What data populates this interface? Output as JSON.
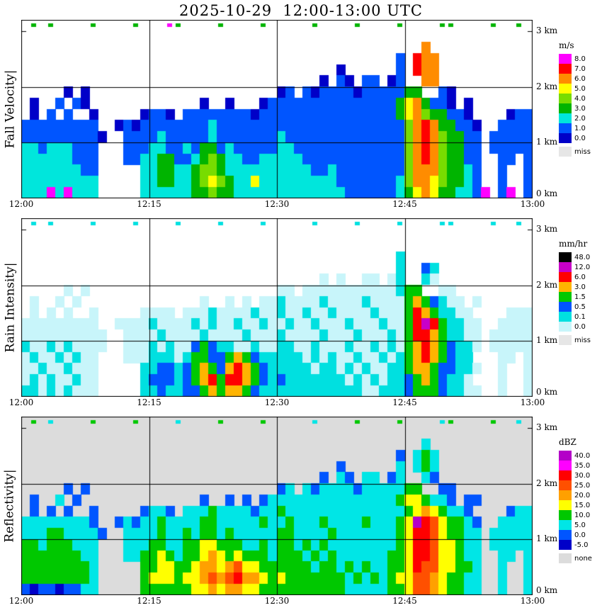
{
  "chart_data": {
    "type": "heatmap",
    "title": "2025-10-29  12:00-13:00 UTC",
    "date": "2025-10-29",
    "time_range_utc": "12:00-13:00",
    "x_axis": {
      "ticks": [
        "12:00",
        "12:15",
        "12:30",
        "12:45",
        "13:00"
      ],
      "tick_minutes": [
        0,
        15,
        30,
        45,
        60
      ],
      "range_minutes": [
        0,
        60
      ]
    },
    "y_axis": {
      "ticks": [
        {
          "label": "3 km",
          "km": 3
        },
        {
          "label": "2 km",
          "km": 2
        },
        {
          "label": "1 km",
          "km": 1
        },
        {
          "label": "0 km",
          "km": 0
        }
      ],
      "range_km": [
        0,
        3.2
      ],
      "gridlines_km": [
        1,
        2
      ]
    },
    "grid_encoding": "Each panel grid has 16 rows (top row = 3.0-3.2 km ... bottom row = 0.0-0.2 km) by 60 columns (1 minute each from 12:00 UTC). '.' means no echo / background; other characters are colour levels defined in that panel's palette.",
    "panels": [
      {
        "name": "fall-velocity",
        "ylabel": "Fall Velocity|",
        "unit": "m/s",
        "bg": "#FFFFFF",
        "palette": {
          "0": "#0000C8",
          "1": "#0055FF",
          "2": "#00E6DC",
          "3": "#00B400",
          "4": "#78DC00",
          "5": "#FFFF00",
          "6": "#FF8C00",
          "7": "#FF0000",
          "8": "#FF00FF"
        },
        "colorbar": [
          {
            "label": "8.0",
            "color": "#FF00FF"
          },
          {
            "label": "7.0",
            "color": "#FF0000"
          },
          {
            "label": "6.0",
            "color": "#FF8C00"
          },
          {
            "label": "5.0",
            "color": "#FFFF00"
          },
          {
            "label": "4.0",
            "color": "#78DC00"
          },
          {
            "label": "3.0",
            "color": "#00B400"
          },
          {
            "label": "2.0",
            "color": "#00E6DC"
          },
          {
            "label": "1.0",
            "color": "#0055FF"
          },
          {
            "label": "0.0",
            "color": "#0000C8"
          },
          {
            "label": "miss",
            "color": "#E6E6E6",
            "separated": true
          }
        ],
        "grid": [
          ".3.3....3....3...83....3....3.....3....3....3....33....3..3.",
          "............................................................",
          "...............................................6............",
          "............................................1.766..........",
          ".....................................0......1.766..........",
          "...................................0.10.11.01..66..........",
          ".....0.0......................01.10111101111133..10.........",
          ".0..1.10.............0..0...01111111111111113563110.0......",
          ".0.1.1..0.....0110.1111111101111111111111111356433110....011",
          "111111111..0101111111121111111111111111111111467633110..1111",
          "1111111110..111121111121111111211111111111111467643311.11111",
          "221222111...111221121331211111221111111111111467643311.11111",
          "222222111...112233112343221122222111111111111467643311..11.1",
          "222222211.....223322344322222222221121111111146664 3321..1..1",
          "222222222.....223322345432252222222221111111246654 3321..1..1",
          "222828222.....222222334332222222222222111111235653 32218.18.1"
        ]
      },
      {
        "name": "rain-intensity",
        "ylabel": "Rain Intensity|",
        "unit": "mm/hr",
        "bg": "#FFFFFF",
        "palette": {
          "a": "#C8F5FA",
          "b": "#00E0E0",
          "c": "#0055FF",
          "d": "#00C800",
          "e": "#FFB400",
          "f": "#FF0000",
          "g": "#C800C8",
          "h": "#000000"
        },
        "colorbar": [
          {
            "label": "48.0",
            "color": "#000000"
          },
          {
            "label": "12.0",
            "color": "#C800C8"
          },
          {
            "label": "6.0",
            "color": "#FF0000"
          },
          {
            "label": "3.0",
            "color": "#FFB400"
          },
          {
            "label": "1.5",
            "color": "#00C800"
          },
          {
            "label": "0.5",
            "color": "#0055FF"
          },
          {
            "label": "0.1",
            "color": "#00E0E0"
          },
          {
            "label": "0.0",
            "color": "#C8F5FA"
          },
          {
            "label": "miss",
            "color": "#E6E6E6",
            "separated": true
          }
        ],
        "grid": [
          ".b.b....b....b....b....b....b.....b....b....b....bb....b..b.",
          "............................................................",
          "............................................................",
          "............................................b..............",
          "............................................b..cb..........",
          "...................................a.a..aa.ab..ba..........",
          ".....a.a......................aa.aaaaaaaaaaabdd..aa.........",
          ".a..a.a..............a..a.a.aabaaaabaaaabaaaadedcbaa.a......",
          ".a.a.a..a.....aaaa.aaabaaaabaabaabaabaaaabaaadfedbbaa....aaa",
          "aaaaaaaaa..aaaabaaaababaabaabaabaabaaabaaabaadfgfdbbaa..aaaa",
          "aaaaaaaaaa..aaaabaaaabaaaabaaabaaaabaaabaaabadffedbbaa.aaaaa",
          "baababaaaa..aaababaacdcbbaabaabbaabaaabaababadefedcbba.aaaaa",
          "abaababaa...aaabbbabddccdedcbbbbbababaabaababdefedcbb...aa.a",
          "aabaabaaa.....bbccbcdedcefedcbbbbbabbababaabbdeedccbba..a..a",
          "ababaabaa.....bcccbcdefdffedcbcbbbbbbbabababbcdedcbba...a..a",
          "bbababaaa.....bbcbbccdedeedcbbbbbbbbbbbbaabbbcdddcbbaa..a..a"
        ]
      },
      {
        "name": "reflectivity",
        "ylabel": "Reflectivity|",
        "unit": "dBZ",
        "bg": "#DCDCDC",
        "palette": {
          "0": "#0000C8",
          "1": "#0055FF",
          "2": "#00E6E6",
          "3": "#00C800",
          "4": "#FFFF00",
          "5": "#FFA000",
          "6": "#FF5000",
          "7": "#FF0000",
          "8": "#FF00FF",
          "9": "#B400C8"
        },
        "colorbar": [
          {
            "label": "40.0",
            "color": "#B400C8"
          },
          {
            "label": "35.0",
            "color": "#FF00FF"
          },
          {
            "label": "30.0",
            "color": "#FF0000"
          },
          {
            "label": "25.0",
            "color": "#FF5000"
          },
          {
            "label": "20.0",
            "color": "#FFA000"
          },
          {
            "label": "15.0",
            "color": "#FFFF00"
          },
          {
            "label": "10.0",
            "color": "#00C800"
          },
          {
            "label": "5.0",
            "color": "#00E6E6"
          },
          {
            "label": "0.0",
            "color": "#0055FF"
          },
          {
            "label": "-5.0",
            "color": "#0000C8"
          },
          {
            "label": "none",
            "color": "#DCDCDC",
            "separated": true
          }
        ],
        "grid": [
          ".3.2....3....3....2....3....3.....2....3....3....23....3..2.",
          "............................................................",
          "...............................................2............",
          "............................................1.232..........",
          ".....................................1......2.232..........",
          "...................................1.21.22.12..21..........",
          ".....1.1......................12.21222212222233..11.........",
          ".1..2.1..............1..1.1.12222222222222223443221.11.....",
          ".1.1.1..1.....1221.222322221223222222222222223454 3221....122",
          "222222221..121223222233222223223222322223222349764 3321..2222",
          "2223322221..222232232332322222332222322222223477643322.22222",
          "332333222...222332233443332232332323222222223477644322.22222",
          "333333322...223343233454343332333232322222233477644322..22.2",
          "333333332.....3344334554564433333323323232233476644332..2..2",
          "333333332.....3444344565675543433333332323234466543322..2..2",
          "101101122.....3333334454554433333333332222233466543322..2..2"
        ]
      }
    ]
  }
}
